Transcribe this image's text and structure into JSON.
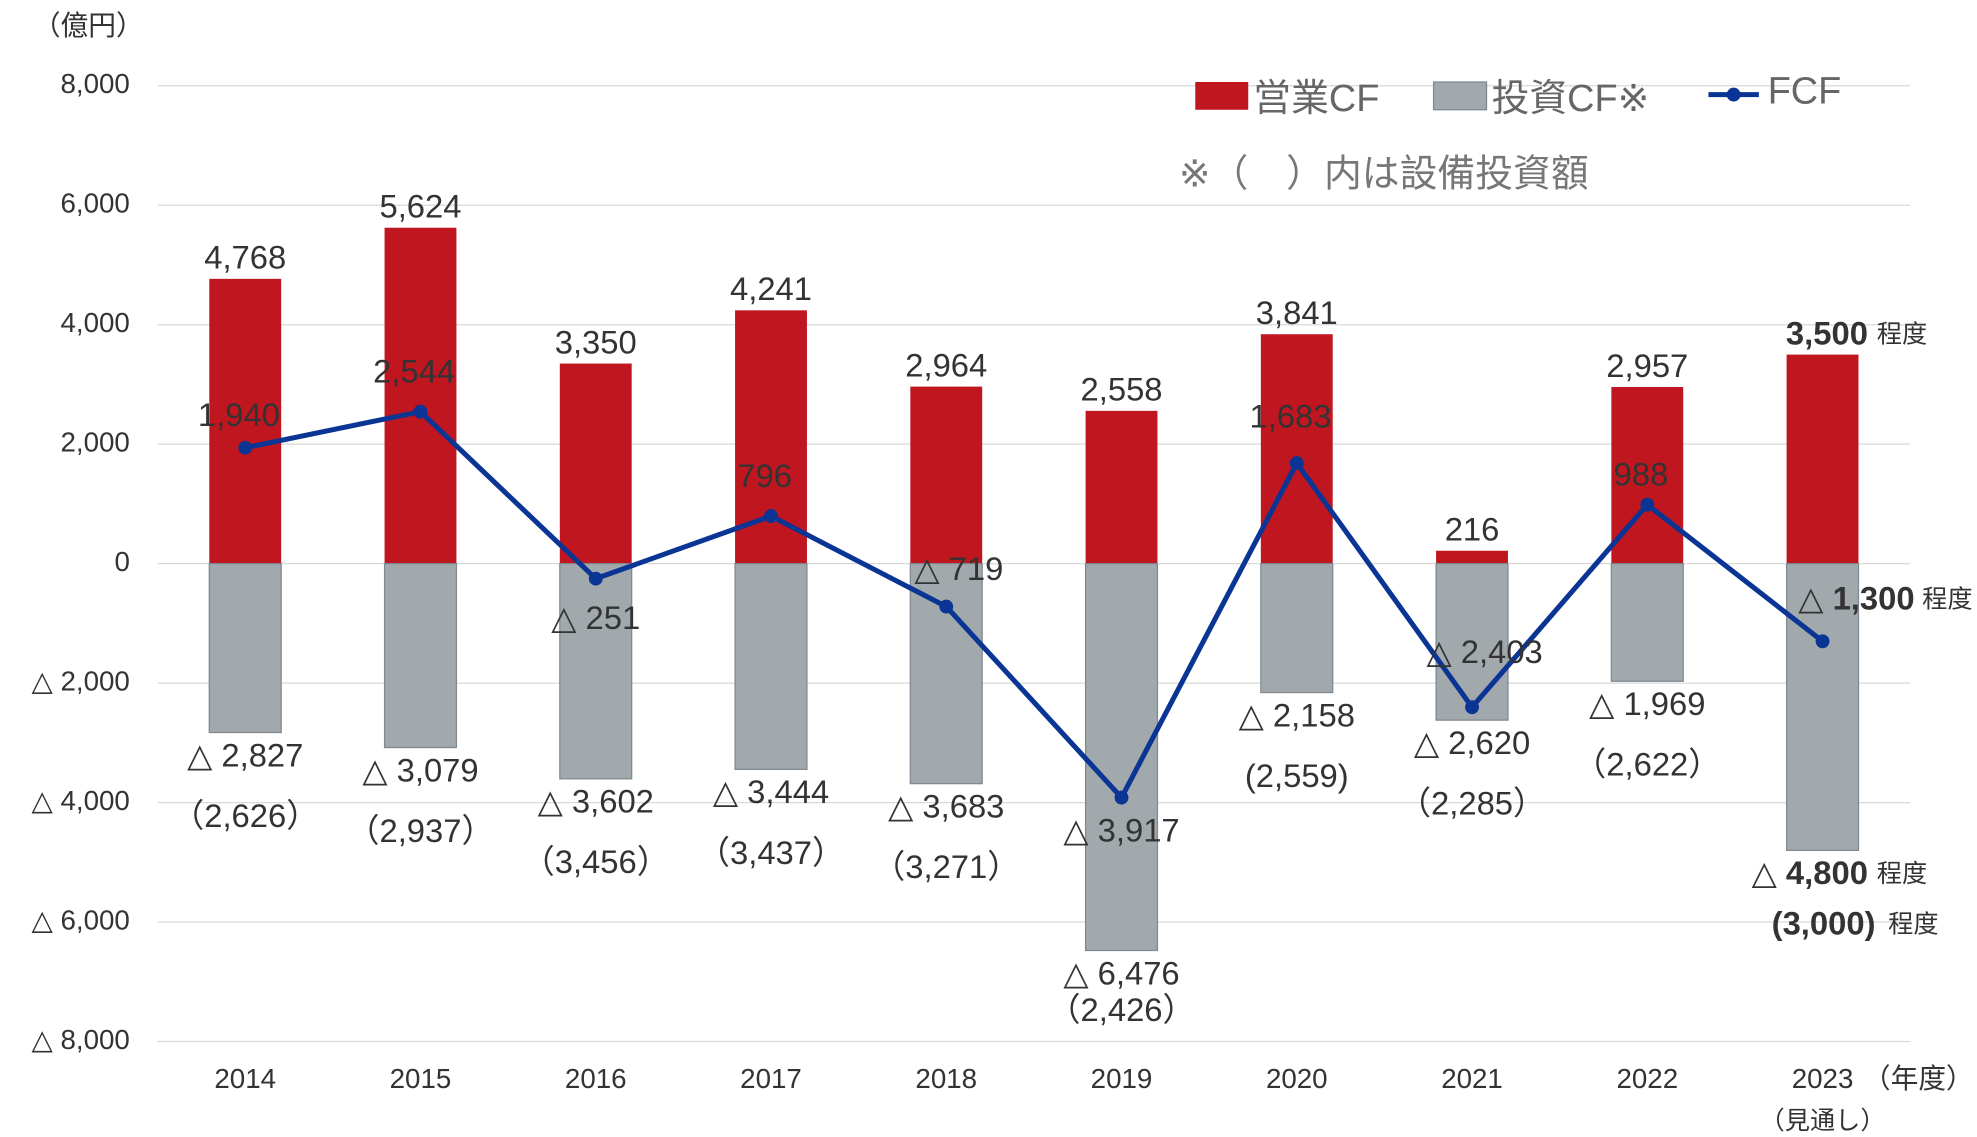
{
  "chart_data": {
    "type": "bar_line",
    "y_unit": "（億円）",
    "categories": [
      "2014",
      "2015",
      "2016",
      "2017",
      "2018",
      "2019",
      "2020",
      "2021",
      "2022",
      "2023"
    ],
    "x_unit": "（年度）",
    "forecast_note": "（見通し）",
    "series": [
      {
        "name": "営業CF",
        "type": "bar",
        "color": "#c0161f",
        "values": [
          4768,
          5624,
          3350,
          4241,
          2964,
          2558,
          3841,
          216,
          2957,
          3500
        ],
        "value_labels": [
          "4,768",
          "5,624",
          "3,350",
          "4,241",
          "2,964",
          "2,558",
          "3,841",
          "216",
          "2,957",
          "3,500"
        ]
      },
      {
        "name": "投資CF※",
        "type": "bar",
        "color": "#a2a9ad",
        "values": [
          -2827,
          -3079,
          -3602,
          -3444,
          -3683,
          -6476,
          -2158,
          -2620,
          -1969,
          -4800
        ],
        "value_labels": [
          "△ 2,827",
          "△ 3,079",
          "△ 3,602",
          "△ 3,444",
          "△ 3,683",
          "△ 6,476",
          "△ 2,158",
          "△ 2,620",
          "△ 1,969",
          "△ 4,800"
        ]
      },
      {
        "name": "FCF",
        "type": "line",
        "color": "#0a3594",
        "values": [
          1940,
          2544,
          -251,
          796,
          -719,
          -3917,
          1683,
          -2403,
          988,
          -1300
        ],
        "value_labels": [
          "1,940",
          "2,544",
          "△ 251",
          "796",
          "△ 719",
          "△ 3,917",
          "1,683",
          "△ 2,403",
          "988",
          "△ 1,300"
        ]
      }
    ],
    "capex_labels": [
      "（2,626）",
      "（2,937）",
      "（3,456）",
      "（3,437）",
      "（3,271）",
      "（2,426）",
      "(2,559)",
      "（2,285）",
      "（2,622）",
      "(3,000)"
    ],
    "estimate_suffix": "程度",
    "note": "※（　）内は設備投資額",
    "ylim": [
      -8000,
      8000
    ],
    "yticks": [
      {
        "value": 8000,
        "label": "8,000"
      },
      {
        "value": 6000,
        "label": "6,000"
      },
      {
        "value": 4000,
        "label": "4,000"
      },
      {
        "value": 2000,
        "label": "2,000"
      },
      0,
      {
        "value": -2000,
        "label": "△ 2,000"
      },
      {
        "value": -4000,
        "label": "△ 4,000"
      },
      {
        "value": -6000,
        "label": "△ 6,000"
      },
      {
        "value": -8000,
        "label": "△ 8,000"
      }
    ],
    "grid": true
  }
}
